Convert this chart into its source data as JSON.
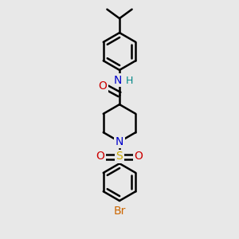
{
  "bg_color": "#e8e8e8",
  "bond_color": "#000000",
  "bond_width": 1.8,
  "atom_colors": {
    "C": "#000000",
    "N": "#0000cc",
    "O": "#cc0000",
    "S": "#ccaa00",
    "Br": "#cc6600",
    "H": "#008888"
  },
  "font_size": 10,
  "fig_size": [
    3.0,
    3.0
  ],
  "dpi": 100,
  "xlim": [
    0,
    10
  ],
  "ylim": [
    0,
    10
  ]
}
